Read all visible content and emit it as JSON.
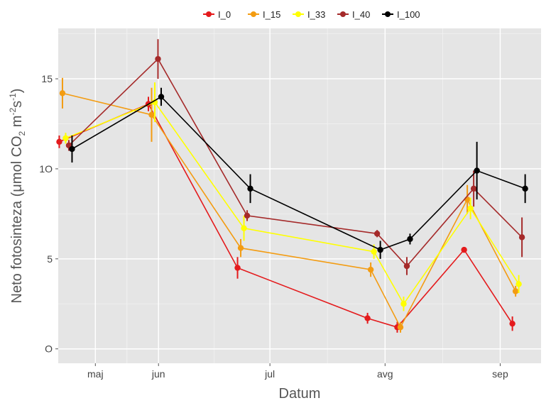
{
  "chart_data": {
    "type": "line",
    "title": "",
    "xlabel": "Datum",
    "ylabel": "Neto fotosinteza (μmol CO₂ m⁻²s⁻¹)",
    "ylabel_parts": {
      "before_sub": "Neto fotosinteza (μmol CO",
      "sub": "2",
      "middle": " m",
      "sup": "-2",
      "after_sup": "s",
      "sup2": "-1",
      "end": ")"
    },
    "x_ticks": [
      {
        "label": "maj",
        "date": "2019-05-15"
      },
      {
        "label": "jun",
        "date": "2019-06-01"
      },
      {
        "label": "jul",
        "date": "2019-07-01"
      },
      {
        "label": "avg",
        "date": "2019-08-01"
      },
      {
        "label": "sep",
        "date": "2019-09-01"
      }
    ],
    "xlim": [
      "2019-05-05",
      "2019-09-12"
    ],
    "y_ticks": [
      {
        "label": "O",
        "value": 0
      },
      {
        "label": "5",
        "value": 5
      },
      {
        "label": "1O",
        "value": 10
      },
      {
        "label": "15",
        "value": 15
      }
    ],
    "ylim": [
      -0.8,
      17.8
    ],
    "grid": true,
    "legend_position": "top",
    "series": [
      {
        "name": "I_0",
        "color": "#e41a1c",
        "points": [
          {
            "x": "2019-05-07",
            "y": 11.5,
            "err": 0.35
          },
          {
            "x": "2019-05-31",
            "y": 13.6,
            "err": 0.4
          },
          {
            "x": "2019-06-24",
            "y": 4.5,
            "err": 0.6
          },
          {
            "x": "2019-07-29",
            "y": 1.7,
            "err": 0.3
          },
          {
            "x": "2019-08-06",
            "y": 1.2,
            "err": 0.3
          },
          {
            "x": "2019-08-24",
            "y": 5.5,
            "err": 0.1
          },
          {
            "x": "2019-09-06",
            "y": 1.4,
            "err": 0.4
          }
        ]
      },
      {
        "name": "I_15",
        "color": "#f39c12",
        "points": [
          {
            "x": "2019-05-07",
            "y": 14.2,
            "err": 0.85
          },
          {
            "x": "2019-05-31",
            "y": 13.0,
            "err": 1.5
          },
          {
            "x": "2019-06-24",
            "y": 5.6,
            "err": 0.5
          },
          {
            "x": "2019-07-29",
            "y": 4.4,
            "err": 0.4
          },
          {
            "x": "2019-08-06",
            "y": 1.2,
            "err": 0.3
          },
          {
            "x": "2019-08-24",
            "y": 8.3,
            "err": 0.8
          },
          {
            "x": "2019-09-06",
            "y": 3.2,
            "err": 0.3
          }
        ]
      },
      {
        "name": "I_33",
        "color": "#ffff00",
        "points": [
          {
            "x": "2019-05-07",
            "y": 11.7,
            "err": 0.3
          },
          {
            "x": "2019-05-31",
            "y": 13.7,
            "err": 1.1
          },
          {
            "x": "2019-06-24",
            "y": 6.7,
            "err": 0.7
          },
          {
            "x": "2019-07-29",
            "y": 5.4,
            "err": 0.4
          },
          {
            "x": "2019-08-06",
            "y": 2.5,
            "err": 0.4
          },
          {
            "x": "2019-08-24",
            "y": 7.8,
            "err": 0.6
          },
          {
            "x": "2019-09-06",
            "y": 3.6,
            "err": 0.5
          }
        ]
      },
      {
        "name": "I_40",
        "color": "#a52a2a",
        "points": [
          {
            "x": "2019-05-07",
            "y": 11.3,
            "err": 0.3
          },
          {
            "x": "2019-05-31",
            "y": 16.1,
            "err": 1.1
          },
          {
            "x": "2019-06-24",
            "y": 7.4,
            "err": 0.3
          },
          {
            "x": "2019-07-29",
            "y": 6.4,
            "err": 0.2
          },
          {
            "x": "2019-08-06",
            "y": 4.6,
            "err": 0.5
          },
          {
            "x": "2019-08-24",
            "y": 8.9,
            "err": 1.0
          },
          {
            "x": "2019-09-06",
            "y": 6.2,
            "err": 1.1
          }
        ]
      },
      {
        "name": "I_100",
        "color": "#000000",
        "points": [
          {
            "x": "2019-05-07",
            "y": 11.1,
            "err": 0.75
          },
          {
            "x": "2019-05-31",
            "y": 14.0,
            "err": 0.5
          },
          {
            "x": "2019-06-24",
            "y": 8.9,
            "err": 0.8
          },
          {
            "x": "2019-07-29",
            "y": 5.5,
            "err": 0.5
          },
          {
            "x": "2019-08-06",
            "y": 6.1,
            "err": 0.3
          },
          {
            "x": "2019-08-24",
            "y": 9.9,
            "err": 1.6
          },
          {
            "x": "2019-09-06",
            "y": 8.9,
            "err": 0.8
          }
        ]
      }
    ]
  }
}
